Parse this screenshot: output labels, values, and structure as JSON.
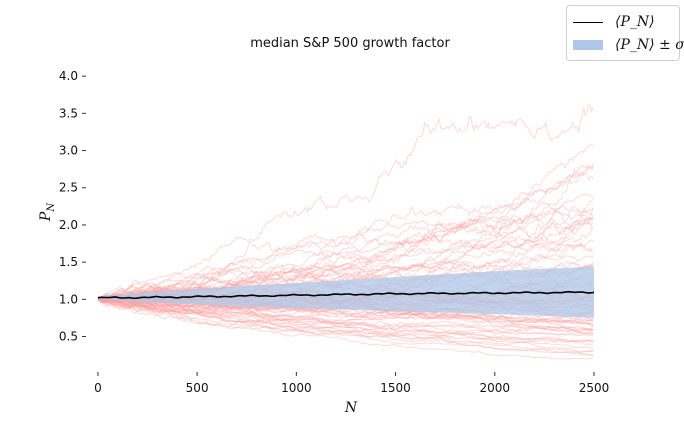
{
  "chart_data": {
    "type": "line",
    "title": "median S&P 500 growth factor",
    "xlabel": "N",
    "ylabel": "P_N",
    "xlim": [
      -60,
      2500
    ],
    "ylim": [
      0.05,
      4.15
    ],
    "xticks": [
      0,
      500,
      1000,
      1500,
      2000,
      2500
    ],
    "yticks": [
      0.5,
      1.0,
      1.5,
      2.0,
      2.5,
      3.0,
      3.5,
      4.0
    ],
    "ytick_labels": [
      "0.5",
      "1.0",
      "1.5",
      "2.0",
      "2.5",
      "3.0",
      "3.5",
      "4.0"
    ],
    "grid": false,
    "legend_position": "top-right",
    "series": [
      {
        "name": "⟨P_N⟩",
        "kind": "mean-line",
        "color": "#000000",
        "x": [
          0,
          250,
          500,
          750,
          1000,
          1250,
          1500,
          1750,
          2000,
          2250,
          2500
        ],
        "y": [
          1.02,
          1.025,
          1.035,
          1.045,
          1.055,
          1.065,
          1.075,
          1.08,
          1.085,
          1.09,
          1.095
        ]
      },
      {
        "name": "⟨P_N⟩ ± σ_t",
        "kind": "band",
        "color": "#aec7e8",
        "x": [
          0,
          250,
          500,
          750,
          1000,
          1250,
          1500,
          1750,
          2000,
          2250,
          2500
        ],
        "lower": [
          1.0,
          0.96,
          0.93,
          0.9,
          0.88,
          0.86,
          0.84,
          0.82,
          0.8,
          0.78,
          0.75
        ],
        "upper": [
          1.04,
          1.1,
          1.14,
          1.18,
          1.22,
          1.26,
          1.3,
          1.34,
          1.38,
          1.41,
          1.44
        ]
      }
    ],
    "sample_paths": {
      "color": "#ff9e9e",
      "count": 80,
      "start": 1.0,
      "n_steps": 2500,
      "notable_max_values": [
        4.05,
        3.75,
        3.5
      ]
    },
    "legend": [
      {
        "label": "⟨P_N⟩",
        "kind": "line",
        "color": "#000000"
      },
      {
        "label": "⟨P_N⟩ ± σ_t",
        "kind": "band",
        "color": "#aec7e8"
      }
    ]
  }
}
